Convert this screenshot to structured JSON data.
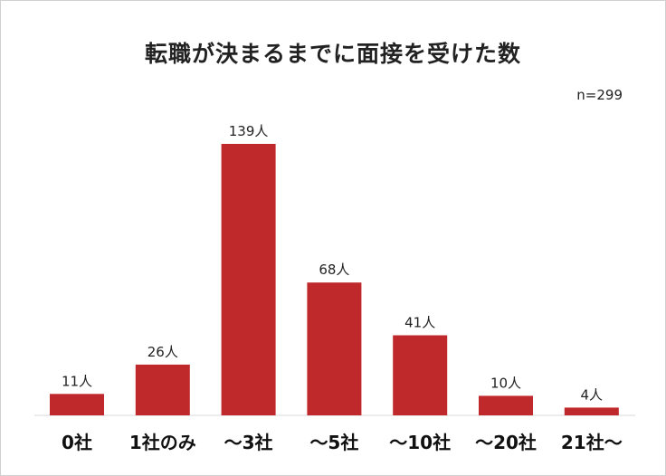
{
  "chart_data": {
    "type": "bar",
    "title": "転職が決まるまでに面接を受けた数",
    "note": "n=299",
    "categories": [
      "0社",
      "1社のみ",
      "〜3社",
      "〜5社",
      "〜10社",
      "〜20社",
      "21社〜"
    ],
    "values": [
      11,
      26,
      139,
      68,
      41,
      10,
      4
    ],
    "data_labels": [
      "11人",
      "26人",
      "139人",
      "68人",
      "41人",
      "10人",
      "4人"
    ],
    "ylim": [
      0,
      139
    ],
    "grid": false,
    "legend": "none",
    "bar_color": "#c0292b"
  }
}
